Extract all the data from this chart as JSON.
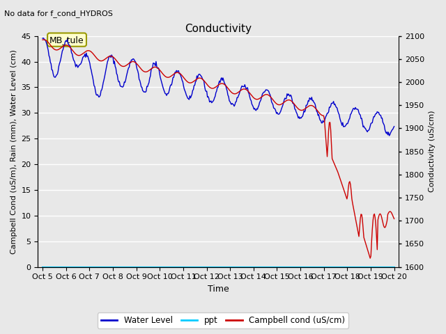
{
  "title": "Conductivity",
  "top_left_text": "No data for f_cond_HYDROS",
  "ylabel_left": "Campbell Cond (uS/m), Rain (mm), Water Level (cm)",
  "ylabel_right": "Conductivity (uS/cm)",
  "xlabel": "Time",
  "ylim_left": [
    0,
    45
  ],
  "ylim_right": [
    1600,
    2100
  ],
  "yticks_left": [
    0,
    5,
    10,
    15,
    20,
    25,
    30,
    35,
    40,
    45
  ],
  "yticks_right": [
    1600,
    1650,
    1700,
    1750,
    1800,
    1850,
    1900,
    1950,
    2000,
    2050,
    2100
  ],
  "xtick_labels": [
    "Oct 5",
    "Oct 6",
    "Oct 7",
    "Oct 8",
    "Oct 9",
    "Oct 10",
    "Oct 11",
    "Oct 12",
    "Oct 13",
    "Oct 14",
    "Oct 15",
    "Oct 16",
    "Oct 17",
    "Oct 18",
    "Oct 19",
    "Oct 20"
  ],
  "xtick_positions": [
    0,
    1,
    2,
    3,
    4,
    5,
    6,
    7,
    8,
    9,
    10,
    11,
    12,
    13,
    14,
    15
  ],
  "background_color": "#e8e8e8",
  "grid_color": "#ffffff",
  "annotation_box_text": "MB_tule",
  "annotation_facecolor": "#ffffcc",
  "annotation_edgecolor": "#999900",
  "water_level_color": "#0000cc",
  "ppt_color": "#00ccff",
  "campbell_color": "#cc0000",
  "title_fontsize": 11,
  "label_fontsize": 8,
  "tick_fontsize": 8
}
